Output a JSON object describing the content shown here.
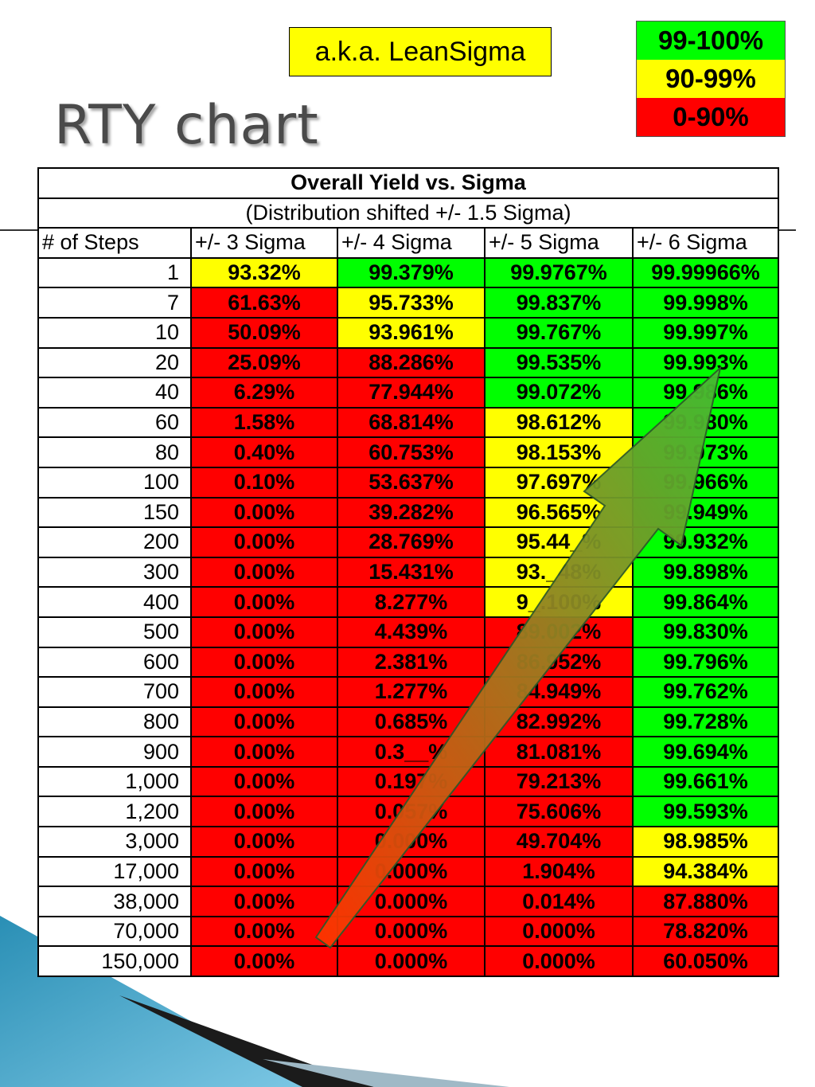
{
  "slide": {
    "title": "RTY chart",
    "aka_note": "a.k.a. LeanSigma"
  },
  "legend": {
    "items": [
      {
        "label": "99-100%",
        "color": "#00ff00"
      },
      {
        "label": "90-99%",
        "color": "#ffff00"
      },
      {
        "label": "0-90%",
        "color": "#ff0000"
      }
    ]
  },
  "table": {
    "title": "Overall Yield vs. Sigma",
    "subtitle": "(Distribution shifted +/- 1.5 Sigma)",
    "columns": [
      "# of Steps",
      "+/- 3 Sigma",
      "+/- 4 Sigma",
      "+/- 5 Sigma",
      "+/- 6 Sigma"
    ],
    "rows": [
      {
        "steps": "1",
        "values": [
          "93.32%",
          "99.379%",
          "99.9767%",
          "99.99966%"
        ],
        "colors": [
          "#ffff00",
          "#00ff00",
          "#00ff00",
          "#00ff00"
        ]
      },
      {
        "steps": "7",
        "values": [
          "61.63%",
          "95.733%",
          "99.837%",
          "99.998%"
        ],
        "colors": [
          "#ff0000",
          "#ffff00",
          "#00ff00",
          "#00ff00"
        ]
      },
      {
        "steps": "10",
        "values": [
          "50.09%",
          "93.961%",
          "99.767%",
          "99.997%"
        ],
        "colors": [
          "#ff0000",
          "#ffff00",
          "#00ff00",
          "#00ff00"
        ]
      },
      {
        "steps": "20",
        "values": [
          "25.09%",
          "88.286%",
          "99.535%",
          "99.993%"
        ],
        "colors": [
          "#ff0000",
          "#ff0000",
          "#00ff00",
          "#00ff00"
        ]
      },
      {
        "steps": "40",
        "values": [
          "6.29%",
          "77.944%",
          "99.072%",
          "99.986%"
        ],
        "colors": [
          "#ff0000",
          "#ff0000",
          "#00ff00",
          "#00ff00"
        ]
      },
      {
        "steps": "60",
        "values": [
          "1.58%",
          "68.814%",
          "98.612%",
          "99.980%"
        ],
        "colors": [
          "#ff0000",
          "#ff0000",
          "#ffff00",
          "#00ff00"
        ]
      },
      {
        "steps": "80",
        "values": [
          "0.40%",
          "60.753%",
          "98.153%",
          "99.973%"
        ],
        "colors": [
          "#ff0000",
          "#ff0000",
          "#ffff00",
          "#00ff00"
        ]
      },
      {
        "steps": "100",
        "values": [
          "0.10%",
          "53.637%",
          "97.697%",
          "99.966%"
        ],
        "colors": [
          "#ff0000",
          "#ff0000",
          "#ffff00",
          "#00ff00"
        ]
      },
      {
        "steps": "150",
        "values": [
          "0.00%",
          "39.282%",
          "96.565%",
          "99.949%"
        ],
        "colors": [
          "#ff0000",
          "#ff0000",
          "#ffff00",
          "#00ff00"
        ]
      },
      {
        "steps": "200",
        "values": [
          "0.00%",
          "28.769%",
          "95.44_%",
          "99.932%"
        ],
        "colors": [
          "#ff0000",
          "#ff0000",
          "#ffff00",
          "#00ff00"
        ]
      },
      {
        "steps": "300",
        "values": [
          "0.00%",
          "15.431%",
          "93._48%",
          "99.898%"
        ],
        "colors": [
          "#ff0000",
          "#ff0000",
          "#ffff00",
          "#00ff00"
        ]
      },
      {
        "steps": "400",
        "values": [
          "0.00%",
          "8.277%",
          "9_.100%",
          "99.864%"
        ],
        "colors": [
          "#ff0000",
          "#ff0000",
          "#ffff00",
          "#00ff00"
        ]
      },
      {
        "steps": "500",
        "values": [
          "0.00%",
          "4.439%",
          "89.002%",
          "99.830%"
        ],
        "colors": [
          "#ff0000",
          "#ff0000",
          "#ff0000",
          "#00ff00"
        ]
      },
      {
        "steps": "600",
        "values": [
          "0.00%",
          "2.381%",
          "86.952%",
          "99.796%"
        ],
        "colors": [
          "#ff0000",
          "#ff0000",
          "#ff0000",
          "#00ff00"
        ]
      },
      {
        "steps": "700",
        "values": [
          "0.00%",
          "1.277%",
          "84.949%",
          "99.762%"
        ],
        "colors": [
          "#ff0000",
          "#ff0000",
          "#ff0000",
          "#00ff00"
        ]
      },
      {
        "steps": "800",
        "values": [
          "0.00%",
          "0.685%",
          "82.992%",
          "99.728%"
        ],
        "colors": [
          "#ff0000",
          "#ff0000",
          "#ff0000",
          "#00ff00"
        ]
      },
      {
        "steps": "900",
        "values": [
          "0.00%",
          "0.3__%",
          "81.081%",
          "99.694%"
        ],
        "colors": [
          "#ff0000",
          "#ff0000",
          "#ff0000",
          "#00ff00"
        ]
      },
      {
        "steps": "1,000",
        "values": [
          "0.00%",
          "0.197%",
          "79.213%",
          "99.661%"
        ],
        "colors": [
          "#ff0000",
          "#ff0000",
          "#ff0000",
          "#00ff00"
        ]
      },
      {
        "steps": "1,200",
        "values": [
          "0.00%",
          "0.057%",
          "75.606%",
          "99.593%"
        ],
        "colors": [
          "#ff0000",
          "#ff0000",
          "#ff0000",
          "#00ff00"
        ]
      },
      {
        "steps": "3,000",
        "values": [
          "0.00%",
          "0.000%",
          "49.704%",
          "98.985%"
        ],
        "colors": [
          "#ff0000",
          "#ff0000",
          "#ff0000",
          "#ffff00"
        ]
      },
      {
        "steps": "17,000",
        "values": [
          "0.00%",
          "0.000%",
          "1.904%",
          "94.384%"
        ],
        "colors": [
          "#ff0000",
          "#ff0000",
          "#ff0000",
          "#ffff00"
        ]
      },
      {
        "steps": "38,000",
        "values": [
          "0.00%",
          "0.000%",
          "0.014%",
          "87.880%"
        ],
        "colors": [
          "#ff0000",
          "#ff0000",
          "#ff0000",
          "#ff0000"
        ]
      },
      {
        "steps": "70,000",
        "values": [
          "0.00%",
          "0.000%",
          "0.000%",
          "78.820%"
        ],
        "colors": [
          "#ff0000",
          "#ff0000",
          "#ff0000",
          "#ff0000"
        ]
      },
      {
        "steps": "150,000",
        "values": [
          "0.00%",
          "0.000%",
          "0.000%",
          "60.050%"
        ],
        "colors": [
          "#ff0000",
          "#ff0000",
          "#ff0000",
          "#ff0000"
        ]
      }
    ]
  },
  "arrow": {
    "color_start": "#ff3300",
    "color_end": "#44bb33"
  }
}
